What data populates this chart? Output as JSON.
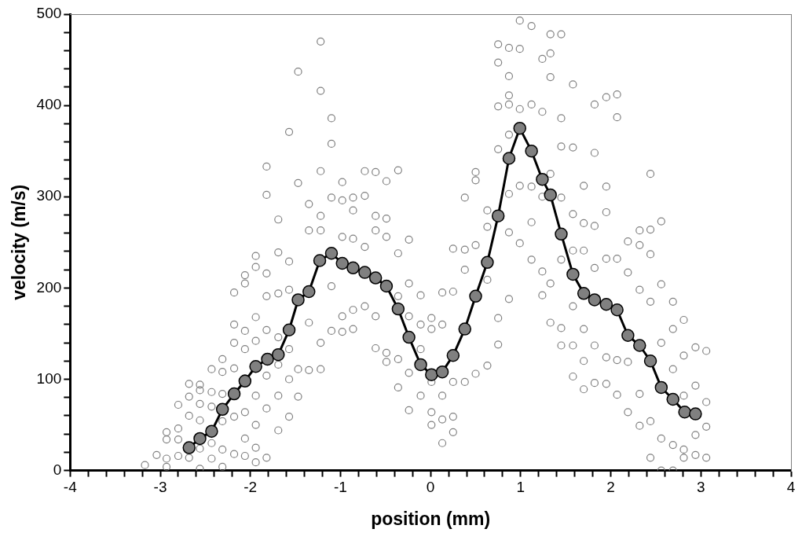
{
  "chart_data": {
    "type": "scatter",
    "xlabel": "position (mm)",
    "ylabel": "velocity (m/s)",
    "xlim": [
      -4,
      4
    ],
    "ylim": [
      0,
      500
    ],
    "xticks": [
      -4,
      {
        "value": -3.8,
        "label": null
      },
      {
        "value": -3.6,
        "label": null
      },
      {
        "value": -3.4,
        "label": null
      },
      {
        "value": -3.2,
        "label": null
      },
      -3,
      {
        "value": -2.8,
        "label": null
      },
      {
        "value": -2.6,
        "label": null
      },
      {
        "value": -2.4,
        "label": null
      },
      {
        "value": -2.2,
        "label": null
      },
      -2,
      {
        "value": -1.8,
        "label": null
      },
      {
        "value": -1.6,
        "label": null
      },
      {
        "value": -1.4,
        "label": null
      },
      {
        "value": -1.2,
        "label": null
      },
      -1,
      {
        "value": -0.8,
        "label": null
      },
      {
        "value": -0.6,
        "label": null
      },
      {
        "value": -0.4,
        "label": null
      },
      {
        "value": -0.2,
        "label": null
      },
      0,
      {
        "value": 0.2,
        "label": null
      },
      {
        "value": 0.4,
        "label": null
      },
      {
        "value": 0.6,
        "label": null
      },
      {
        "value": 0.8,
        "label": null
      },
      1,
      {
        "value": 1.2,
        "label": null
      },
      {
        "value": 1.4,
        "label": null
      },
      {
        "value": 1.6,
        "label": null
      },
      {
        "value": 1.8,
        "label": null
      },
      2,
      {
        "value": 2.2,
        "label": null
      },
      {
        "value": 2.4,
        "label": null
      },
      {
        "value": 2.6,
        "label": null
      },
      {
        "value": 2.8,
        "label": null
      },
      3,
      {
        "value": 3.2,
        "label": null
      },
      {
        "value": 3.4,
        "label": null
      },
      {
        "value": 3.6,
        "label": null
      },
      {
        "value": 3.8,
        "label": null
      },
      4
    ],
    "yticks": [
      0,
      {
        "value": 20,
        "label": null
      },
      {
        "value": 40,
        "label": null
      },
      {
        "value": 60,
        "label": null
      },
      {
        "value": 80,
        "label": null
      },
      100,
      {
        "value": 120,
        "label": null
      },
      {
        "value": 140,
        "label": null
      },
      {
        "value": 160,
        "label": null
      },
      {
        "value": 180,
        "label": null
      },
      200,
      {
        "value": 220,
        "label": null
      },
      {
        "value": 240,
        "label": null
      },
      {
        "value": 260,
        "label": null
      },
      {
        "value": 280,
        "label": null
      },
      300,
      {
        "value": 320,
        "label": null
      },
      {
        "value": 340,
        "label": null
      },
      {
        "value": 360,
        "label": null
      },
      {
        "value": 380,
        "label": null
      },
      400,
      {
        "value": 420,
        "label": null
      },
      {
        "value": 440,
        "label": null
      },
      {
        "value": 460,
        "label": null
      },
      {
        "value": 480,
        "label": null
      },
      500
    ],
    "grid": false,
    "legend": false,
    "marker": "circle",
    "series": [
      {
        "type": "scatter",
        "color": "#808080",
        "x": [
          -3.17,
          -3.04,
          -2.93,
          -2.93,
          -2.93,
          -2.93,
          -2.8,
          -2.8,
          -2.8,
          -2.8,
          -2.68,
          -2.68,
          -2.68,
          -2.68,
          -2.56,
          -2.56,
          -2.56,
          -2.56,
          -2.56,
          -2.56,
          -2.43,
          -2.43,
          -2.43,
          -2.43,
          -2.43,
          -2.31,
          -2.31,
          -2.31,
          -2.31,
          -2.31,
          -2.31,
          -2.18,
          -2.18,
          -2.18,
          -2.18,
          -2.18,
          -2.18,
          -2.06,
          -2.06,
          -2.06,
          -2.06,
          -2.06,
          -2.06,
          -2.06,
          -2.06,
          -1.94,
          -1.94,
          -1.94,
          -1.94,
          -1.94,
          -1.94,
          -1.94,
          -1.94,
          -1.82,
          -1.82,
          -1.82,
          -1.82,
          -1.82,
          -1.82,
          -1.82,
          -1.82,
          -1.69,
          -1.69,
          -1.69,
          -1.69,
          -1.69,
          -1.69,
          -1.69,
          -1.57,
          -1.57,
          -1.57,
          -1.57,
          -1.57,
          -1.57,
          -1.47,
          -1.47,
          -1.47,
          -1.47,
          -1.35,
          -1.35,
          -1.35,
          -1.35,
          -1.22,
          -1.22,
          -1.22,
          -1.22,
          -1.22,
          -1.22,
          -1.22,
          -1.1,
          -1.1,
          -1.1,
          -1.1,
          -1.1,
          -0.98,
          -0.98,
          -0.98,
          -0.98,
          -0.98,
          -0.86,
          -0.86,
          -0.86,
          -0.86,
          -0.86,
          -0.73,
          -0.73,
          -0.73,
          -0.73,
          -0.61,
          -0.61,
          -0.61,
          -0.61,
          -0.61,
          -0.49,
          -0.49,
          -0.49,
          -0.49,
          -0.49,
          -0.36,
          -0.36,
          -0.36,
          -0.36,
          -0.36,
          -0.24,
          -0.24,
          -0.24,
          -0.24,
          -0.24,
          -0.11,
          -0.11,
          -0.11,
          -0.11,
          0.01,
          0.01,
          0.01,
          0.01,
          0.01,
          0.13,
          0.13,
          0.13,
          0.13,
          0.13,
          0.25,
          0.25,
          0.25,
          0.25,
          0.25,
          0.38,
          0.38,
          0.38,
          0.38,
          0.5,
          0.5,
          0.5,
          0.5,
          0.63,
          0.63,
          0.63,
          0.63,
          0.75,
          0.75,
          0.75,
          0.75,
          0.75,
          0.75,
          0.87,
          0.87,
          0.87,
          0.87,
          0.87,
          0.87,
          0.87,
          0.87,
          0.99,
          0.99,
          0.99,
          0.99,
          0.99,
          1.12,
          1.12,
          1.12,
          1.12,
          1.12,
          1.24,
          1.24,
          1.24,
          1.24,
          1.24,
          1.33,
          1.33,
          1.33,
          1.33,
          1.33,
          1.33,
          1.45,
          1.45,
          1.45,
          1.45,
          1.45,
          1.45,
          1.45,
          1.58,
          1.58,
          1.58,
          1.58,
          1.58,
          1.58,
          1.58,
          1.7,
          1.7,
          1.7,
          1.7,
          1.7,
          1.7,
          1.82,
          1.82,
          1.82,
          1.82,
          1.82,
          1.82,
          1.95,
          1.95,
          1.95,
          1.95,
          1.95,
          1.95,
          2.07,
          2.07,
          2.07,
          2.07,
          2.07,
          2.19,
          2.19,
          2.19,
          2.19,
          2.32,
          2.32,
          2.32,
          2.32,
          2.32,
          2.44,
          2.44,
          2.44,
          2.44,
          2.44,
          2.44,
          2.56,
          2.56,
          2.56,
          2.56,
          2.56,
          2.69,
          2.69,
          2.69,
          2.69,
          2.69,
          2.81,
          2.81,
          2.81,
          2.81,
          2.81,
          2.94,
          2.94,
          2.94,
          2.94,
          3.06,
          3.06,
          3.06,
          3.06
        ],
        "values": [
          6,
          17,
          13,
          4,
          34,
          42,
          72,
          46,
          34,
          16,
          95,
          81,
          60,
          14,
          94,
          88,
          73,
          55,
          24,
          2,
          111,
          86,
          70,
          30,
          13,
          122,
          108,
          84,
          54,
          23,
          4,
          195,
          160,
          140,
          112,
          59,
          18,
          214,
          205,
          153,
          133,
          101,
          64,
          35,
          16,
          235,
          223,
          168,
          142,
          82,
          50,
          25,
          9,
          333,
          302,
          216,
          191,
          154,
          104,
          68,
          14,
          275,
          239,
          194,
          146,
          116,
          82,
          44,
          371,
          229,
          198,
          133,
          100,
          59,
          437,
          315,
          111,
          81,
          292,
          263,
          162,
          110,
          470,
          416,
          328,
          279,
          263,
          140,
          111,
          386,
          358,
          299,
          202,
          153,
          316,
          296,
          256,
          169,
          152,
          299,
          285,
          254,
          176,
          155,
          328,
          301,
          245,
          180,
          327,
          279,
          263,
          169,
          134,
          317,
          276,
          256,
          129,
          119,
          329,
          238,
          191,
          122,
          91,
          253,
          205,
          169,
          107,
          66,
          192,
          160,
          133,
          82,
          167,
          155,
          97,
          64,
          50,
          195,
          160,
          82,
          56,
          30,
          243,
          196,
          97,
          59,
          42,
          299,
          242,
          220,
          97,
          327,
          318,
          247,
          106,
          285,
          267,
          209,
          115,
          467,
          447,
          399,
          352,
          167,
          138,
          463,
          432,
          411,
          401,
          368,
          303,
          261,
          188,
          493,
          462,
          396,
          312,
          249,
          487,
          401,
          311,
          272,
          231,
          451,
          393,
          300,
          218,
          192,
          478,
          457,
          431,
          325,
          205,
          162,
          478,
          386,
          355,
          299,
          231,
          156,
          137,
          423,
          354,
          281,
          241,
          180,
          137,
          103,
          312,
          271,
          241,
          155,
          120,
          89,
          401,
          348,
          268,
          222,
          137,
          96,
          409,
          311,
          283,
          232,
          124,
          95,
          412,
          387,
          232,
          121,
          83,
          251,
          217,
          119,
          64,
          263,
          247,
          198,
          84,
          49,
          325,
          264,
          237,
          185,
          54,
          14,
          273,
          204,
          140,
          35,
          0,
          185,
          155,
          111,
          28,
          0,
          165,
          126,
          82,
          23,
          14,
          135,
          93,
          39,
          17,
          131,
          75,
          48,
          14
        ]
      },
      {
        "type": "line",
        "color": "#000000",
        "line_style": "solid",
        "x": [
          -2.68,
          -2.56,
          -2.43,
          -2.31,
          -2.18,
          -2.06,
          -1.94,
          -1.81,
          -1.69,
          -1.57,
          -1.47,
          -1.35,
          -1.23,
          -1.1,
          -0.98,
          -0.86,
          -0.73,
          -0.61,
          -0.49,
          -0.36,
          -0.24,
          -0.11,
          0.01,
          0.13,
          0.25,
          0.38,
          0.5,
          0.63,
          0.75,
          0.87,
          0.99,
          1.12,
          1.24,
          1.33,
          1.45,
          1.58,
          1.7,
          1.82,
          1.95,
          2.07,
          2.19,
          2.32,
          2.44,
          2.56,
          2.69,
          2.82,
          2.94
        ],
        "values": [
          25,
          35,
          43,
          67,
          84,
          98,
          114,
          122,
          127,
          154,
          187,
          196,
          230,
          238,
          227,
          222,
          217,
          211,
          202,
          177,
          146,
          116,
          105,
          108,
          126,
          155,
          191,
          228,
          279,
          342,
          375,
          350,
          319,
          302,
          259,
          215,
          194,
          187,
          182,
          176,
          148,
          137,
          120,
          91,
          78,
          64,
          62
        ]
      }
    ]
  }
}
